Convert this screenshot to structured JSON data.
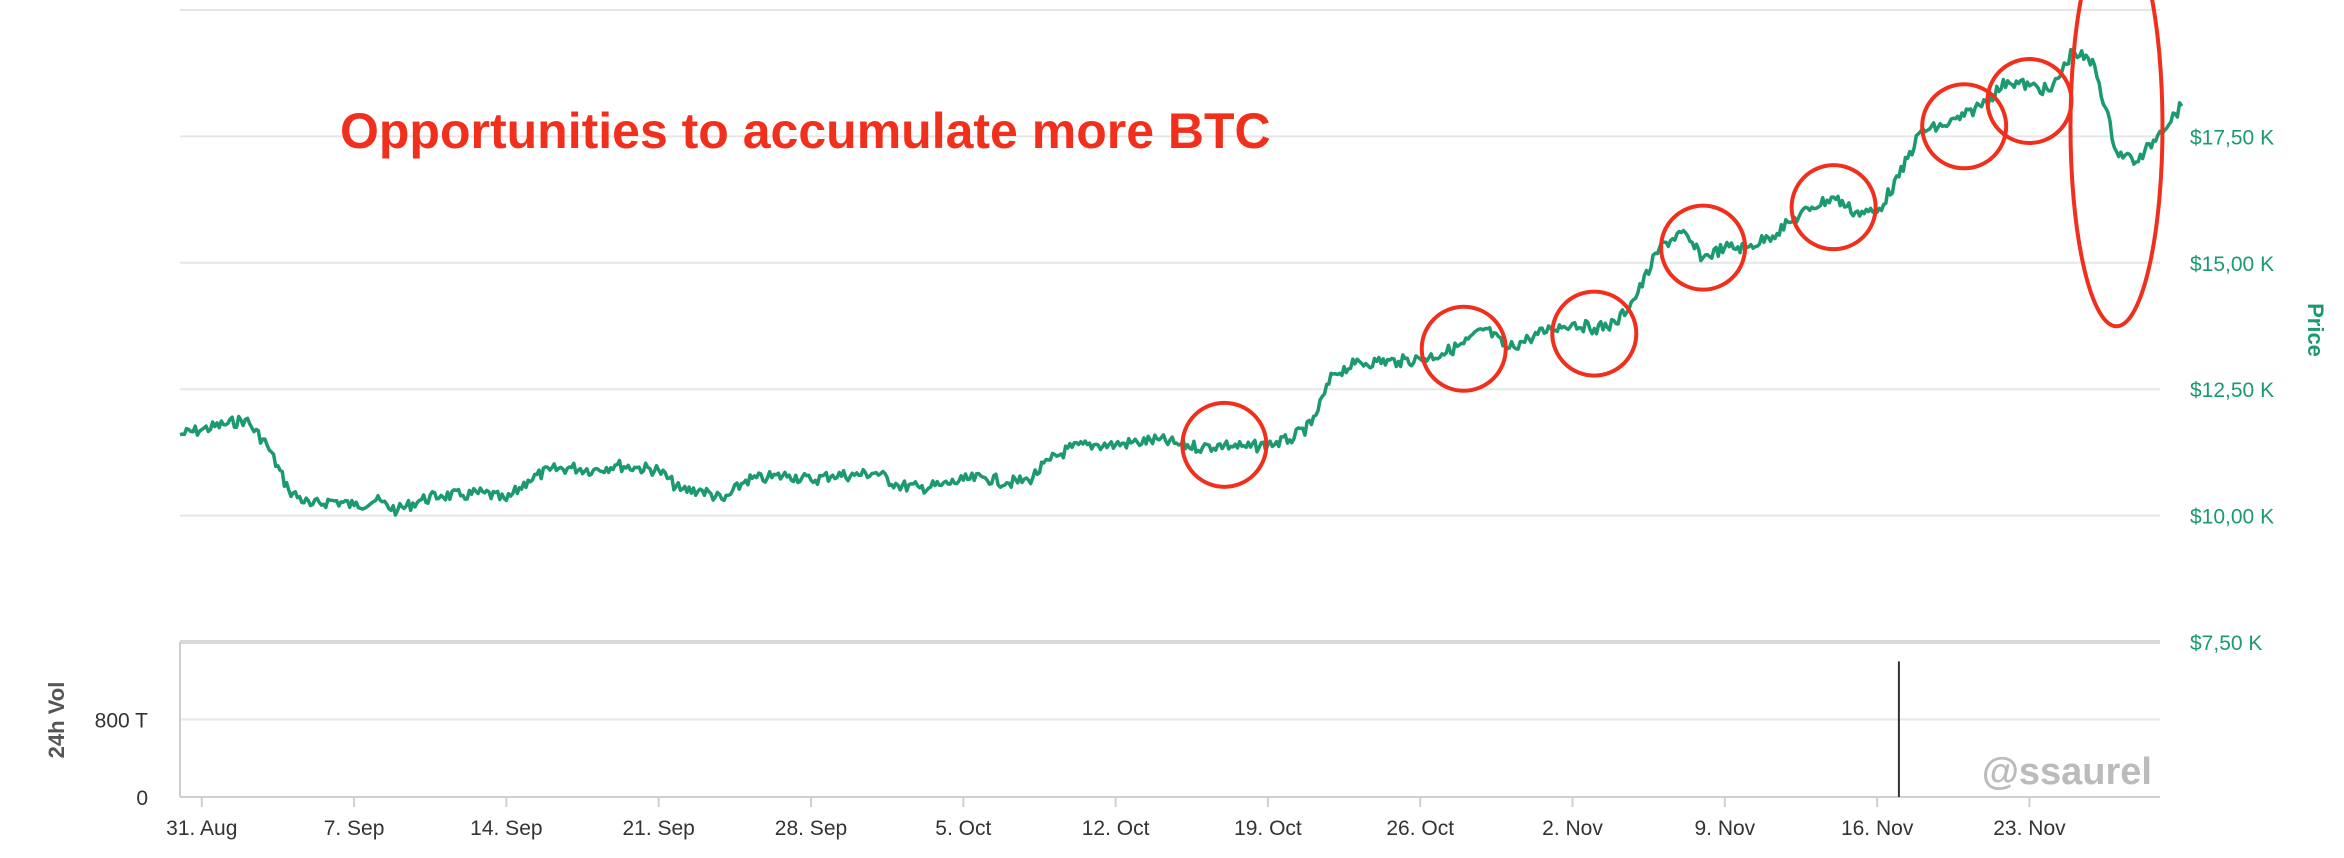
{
  "chart_data": {
    "type": "line",
    "annotation": "Opportunities to accumulate more BTC",
    "watermark": "@ssaurel",
    "colors": {
      "price_line": "#1a9a6e",
      "annotation": "#f0301c",
      "watermark": "#bbbbbb",
      "volume_bar": "#333333"
    },
    "price_axis": {
      "title": "Price",
      "ticks": [
        {
          "value": 7500,
          "label": "$7,50 K"
        },
        {
          "value": 10000,
          "label": "$10,00 K"
        },
        {
          "value": 12500,
          "label": "$12,50 K"
        },
        {
          "value": 15000,
          "label": "$15,00 K"
        },
        {
          "value": 17500,
          "label": "$17,50 K"
        }
      ],
      "range": [
        7500,
        20000
      ]
    },
    "volume_axis": {
      "title": "24h Vol",
      "ticks": [
        {
          "value": 0,
          "label": "0"
        },
        {
          "value": 800,
          "label": "800 T"
        }
      ],
      "range": [
        0,
        1600
      ]
    },
    "x_axis": {
      "range": [
        "2020-08-30",
        "2020-11-29"
      ],
      "ticks": [
        {
          "date": "2020-08-31",
          "label": "31. Aug"
        },
        {
          "date": "2020-09-07",
          "label": "7. Sep"
        },
        {
          "date": "2020-09-14",
          "label": "14. Sep"
        },
        {
          "date": "2020-09-21",
          "label": "21. Sep"
        },
        {
          "date": "2020-09-28",
          "label": "28. Sep"
        },
        {
          "date": "2020-10-05",
          "label": "5. Oct"
        },
        {
          "date": "2020-10-12",
          "label": "12. Oct"
        },
        {
          "date": "2020-10-19",
          "label": "19. Oct"
        },
        {
          "date": "2020-10-26",
          "label": "26. Oct"
        },
        {
          "date": "2020-11-02",
          "label": "2. Nov"
        },
        {
          "date": "2020-11-09",
          "label": "9. Nov"
        },
        {
          "date": "2020-11-16",
          "label": "16. Nov"
        },
        {
          "date": "2020-11-23",
          "label": "23. Nov"
        }
      ]
    },
    "price_series": {
      "points": [
        [
          "2020-08-30",
          11600
        ],
        [
          "2020-08-31",
          11700
        ],
        [
          "2020-09-01",
          11800
        ],
        [
          "2020-09-02",
          11900
        ],
        [
          "2020-09-03",
          11400
        ],
        [
          "2020-09-04",
          10500
        ],
        [
          "2020-09-05",
          10200
        ],
        [
          "2020-09-06",
          10300
        ],
        [
          "2020-09-07",
          10200
        ],
        [
          "2020-09-08",
          10300
        ],
        [
          "2020-09-09",
          10100
        ],
        [
          "2020-09-10",
          10300
        ],
        [
          "2020-09-11",
          10400
        ],
        [
          "2020-09-12",
          10400
        ],
        [
          "2020-09-13",
          10450
        ],
        [
          "2020-09-14",
          10300
        ],
        [
          "2020-09-15",
          10700
        ],
        [
          "2020-09-16",
          10900
        ],
        [
          "2020-09-17",
          10950
        ],
        [
          "2020-09-18",
          10900
        ],
        [
          "2020-09-19",
          11000
        ],
        [
          "2020-09-20",
          10950
        ],
        [
          "2020-09-21",
          10900
        ],
        [
          "2020-09-22",
          10500
        ],
        [
          "2020-09-23",
          10500
        ],
        [
          "2020-09-24",
          10300
        ],
        [
          "2020-09-25",
          10700
        ],
        [
          "2020-09-26",
          10750
        ],
        [
          "2020-09-27",
          10800
        ],
        [
          "2020-09-28",
          10700
        ],
        [
          "2020-09-29",
          10800
        ],
        [
          "2020-09-30",
          10800
        ],
        [
          "2020-10-01",
          10850
        ],
        [
          "2020-10-02",
          10600
        ],
        [
          "2020-10-03",
          10550
        ],
        [
          "2020-10-04",
          10600
        ],
        [
          "2020-10-05",
          10700
        ],
        [
          "2020-10-06",
          10750
        ],
        [
          "2020-10-07",
          10650
        ],
        [
          "2020-10-08",
          10700
        ],
        [
          "2020-10-09",
          11100
        ],
        [
          "2020-10-10",
          11350
        ],
        [
          "2020-10-11",
          11400
        ],
        [
          "2020-10-12",
          11400
        ],
        [
          "2020-10-13",
          11450
        ],
        [
          "2020-10-14",
          11500
        ],
        [
          "2020-10-15",
          11400
        ],
        [
          "2020-10-16",
          11350
        ],
        [
          "2020-10-17",
          11400
        ],
        [
          "2020-10-18",
          11350
        ],
        [
          "2020-10-19",
          11400
        ],
        [
          "2020-10-20",
          11500
        ],
        [
          "2020-10-21",
          11800
        ],
        [
          "2020-10-22",
          12800
        ],
        [
          "2020-10-23",
          13000
        ],
        [
          "2020-10-24",
          13050
        ],
        [
          "2020-10-25",
          13050
        ],
        [
          "2020-10-26",
          13100
        ],
        [
          "2020-10-27",
          13200
        ],
        [
          "2020-10-28",
          13400
        ],
        [
          "2020-10-29",
          13700
        ],
        [
          "2020-10-30",
          13300
        ],
        [
          "2020-10-31",
          13500
        ],
        [
          "2020-11-01",
          13700
        ],
        [
          "2020-11-02",
          13800
        ],
        [
          "2020-11-03",
          13700
        ],
        [
          "2020-11-04",
          13800
        ],
        [
          "2020-11-05",
          14400
        ],
        [
          "2020-11-06",
          15300
        ],
        [
          "2020-11-07",
          15600
        ],
        [
          "2020-11-08",
          15100
        ],
        [
          "2020-11-09",
          15300
        ],
        [
          "2020-11-10",
          15300
        ],
        [
          "2020-11-11",
          15500
        ],
        [
          "2020-11-12",
          15800
        ],
        [
          "2020-11-13",
          16100
        ],
        [
          "2020-11-14",
          16300
        ],
        [
          "2020-11-15",
          16000
        ],
        [
          "2020-11-16",
          16000
        ],
        [
          "2020-11-17",
          16700
        ],
        [
          "2020-11-18",
          17600
        ],
        [
          "2020-11-19",
          17700
        ],
        [
          "2020-11-20",
          17900
        ],
        [
          "2020-11-21",
          18200
        ],
        [
          "2020-11-22",
          18600
        ],
        [
          "2020-11-23",
          18500
        ],
        [
          "2020-11-24",
          18400
        ],
        [
          "2020-11-25",
          19200
        ],
        [
          "2020-11-26",
          18900
        ],
        [
          "2020-11-27",
          17200
        ],
        [
          "2020-11-28",
          17000
        ],
        [
          "2020-11-29",
          17600
        ],
        [
          "2020-11-30",
          18100
        ]
      ]
    },
    "volume_series": {
      "points": [
        [
          "2020-11-17",
          1400
        ]
      ]
    },
    "highlight_circles": [
      {
        "date": "2020-10-17",
        "value": 11400
      },
      {
        "date": "2020-10-28",
        "value": 13300
      },
      {
        "date": "2020-11-03",
        "value": 13600
      },
      {
        "date": "2020-11-08",
        "value": 15300
      },
      {
        "date": "2020-11-14",
        "value": 16100
      },
      {
        "date": "2020-11-20",
        "value": 17700
      },
      {
        "date": "2020-11-23",
        "value": 18200
      },
      {
        "date": "2020-11-27",
        "value": 17700
      }
    ]
  }
}
